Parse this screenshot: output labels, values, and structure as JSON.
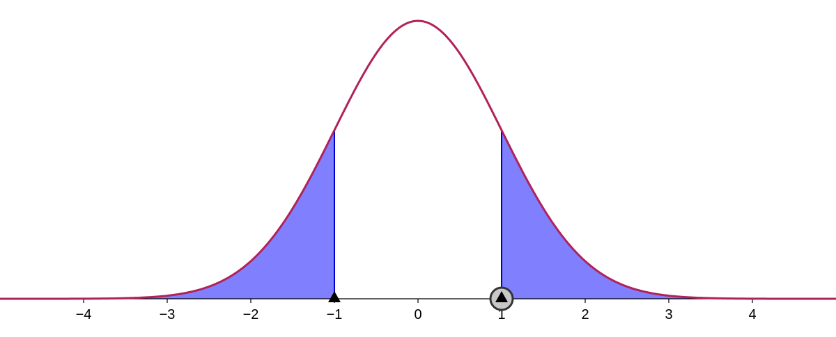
{
  "chart_data": {
    "type": "area",
    "title": "",
    "xlabel": "",
    "ylabel": "",
    "xlim": [
      -5,
      5
    ],
    "ylim": [
      0,
      0.4
    ],
    "grid": false,
    "curve": {
      "function": "standard normal density",
      "mean": 0,
      "sd": 1
    },
    "shaded_regions": [
      {
        "from": -5,
        "to": -1
      },
      {
        "from": 1,
        "to": 5
      }
    ],
    "bounds": [
      -1,
      1
    ],
    "x_ticks": [
      -4,
      -3,
      -2,
      -1,
      0,
      1,
      2,
      3,
      4
    ],
    "x_tick_labels": [
      "−4",
      "−3",
      "−2",
      "−1",
      "0",
      "1",
      "2",
      "3",
      "4"
    ],
    "markers": [
      {
        "x": -1,
        "shape": "triangle",
        "selected": false
      },
      {
        "x": 1,
        "shape": "triangle",
        "selected": true
      }
    ]
  },
  "colors": {
    "curve": "#b0225a",
    "fill": "#8080ff",
    "boundary": "#0000cc",
    "axis": "#000000",
    "marker": "#000000",
    "selection_ring": "#333333",
    "selection_fill": "#c8c8c8"
  },
  "icons": {
    "marker": "triangle-handle-icon",
    "selection": "selection-ring-icon"
  }
}
